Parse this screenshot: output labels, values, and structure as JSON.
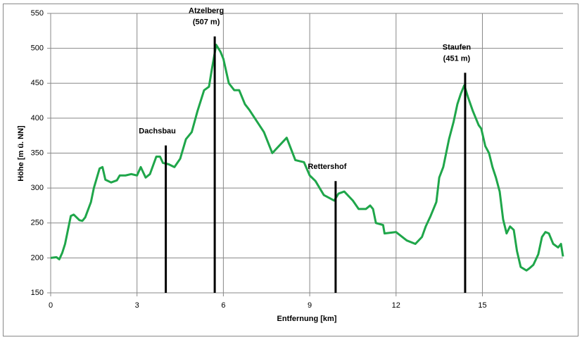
{
  "chart_data": {
    "type": "line",
    "xlabel": "Entfernung [km]",
    "ylabel": "Höhe [m ü. NN]",
    "xlim": [
      0,
      17.8
    ],
    "xticks": [
      0,
      3,
      6,
      9,
      12,
      15
    ],
    "ylim": [
      150,
      550
    ],
    "yticks": [
      150,
      200,
      250,
      300,
      350,
      400,
      450,
      500,
      550
    ],
    "grid": true,
    "series": [
      {
        "color": "#1fa64a",
        "x": [
          0,
          0.2,
          0.3,
          0.4,
          0.5,
          0.6,
          0.7,
          0.8,
          1.0,
          1.1,
          1.2,
          1.4,
          1.5,
          1.7,
          1.8,
          1.9,
          2.1,
          2.3,
          2.4,
          2.6,
          2.8,
          3.0,
          3.13,
          3.3,
          3.45,
          3.67,
          3.8,
          3.9,
          4.1,
          4.3,
          4.5,
          4.7,
          4.9,
          5.1,
          5.33,
          5.5,
          5.6,
          5.75,
          5.9,
          6.0,
          6.19,
          6.38,
          6.55,
          6.75,
          6.9,
          7.41,
          7.7,
          8.2,
          8.5,
          8.8,
          9.0,
          9.2,
          9.49,
          9.85,
          10.0,
          10.2,
          10.5,
          10.7,
          10.95,
          11.1,
          11.2,
          11.3,
          11.55,
          11.6,
          12.0,
          12.37,
          12.67,
          12.9,
          13.03,
          13.2,
          13.4,
          13.5,
          13.64,
          13.84,
          14.0,
          14.13,
          14.25,
          14.37,
          14.5,
          14.67,
          14.87,
          14.96,
          15.1,
          15.23,
          15.35,
          15.47,
          15.6,
          15.72,
          15.84,
          15.96,
          16.09,
          16.2,
          16.33,
          16.53,
          16.63,
          16.77,
          16.94,
          17.07,
          17.19,
          17.31,
          17.46,
          17.63,
          17.73,
          17.8
        ],
        "values": [
          200,
          201,
          198,
          207,
          220,
          240,
          260,
          262,
          254,
          253,
          258,
          280,
          300,
          328,
          330,
          312,
          308,
          311,
          318,
          318,
          320,
          318,
          330,
          315,
          320,
          345,
          345,
          336,
          334,
          330,
          342,
          370,
          380,
          410,
          440,
          445,
          470,
          505,
          495,
          485,
          450,
          440,
          440,
          420,
          412,
          380,
          350,
          372,
          340,
          337,
          318,
          310,
          290,
          282,
          292,
          295,
          282,
          270,
          270,
          275,
          270,
          250,
          247,
          235,
          237,
          225,
          220,
          230,
          245,
          260,
          280,
          315,
          330,
          370,
          395,
          420,
          435,
          447,
          430,
          410,
          390,
          385,
          360,
          350,
          330,
          315,
          295,
          255,
          235,
          245,
          240,
          210,
          187,
          182,
          185,
          190,
          205,
          230,
          237,
          235,
          220,
          215,
          220,
          202
        ]
      }
    ],
    "annotations": [
      {
        "x": 4.0,
        "top": 361,
        "lines": [
          "Dachsbau"
        ]
      },
      {
        "x": 5.7,
        "top": 517,
        "lines": [
          "Atzelberg",
          "(507 m)"
        ]
      },
      {
        "x": 9.9,
        "top": 310,
        "lines": [
          "Rettershof"
        ]
      },
      {
        "x": 14.4,
        "top": 465,
        "lines": [
          "Staufen",
          "(451 m)"
        ]
      }
    ]
  }
}
